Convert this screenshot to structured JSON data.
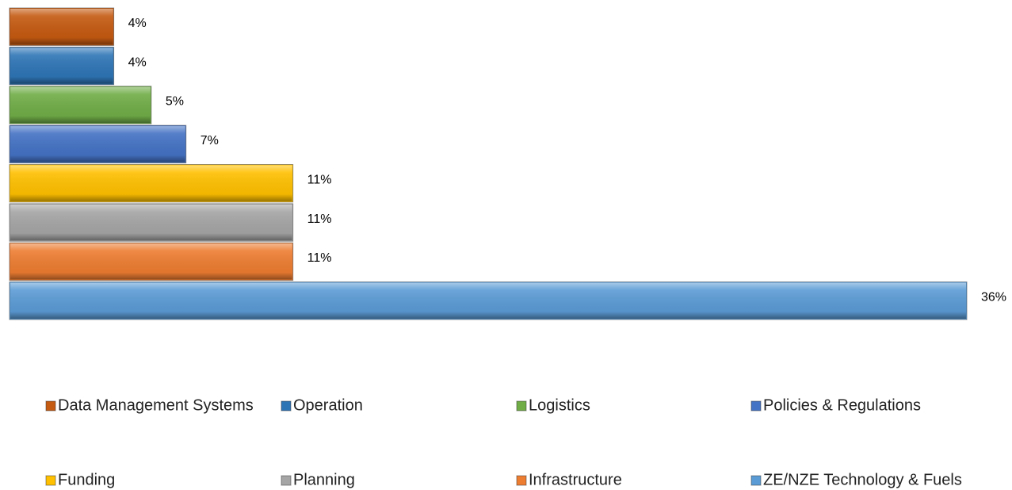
{
  "chart_data": {
    "type": "hbar",
    "categories": [
      "Data Management Systems",
      "Operation",
      "Logistics",
      "Policies & Regulations",
      "Funding",
      "Planning",
      "Infrastructure",
      "ZE/NZE Technology & Fuels"
    ],
    "values": [
      3.9,
      3.9,
      5.3,
      6.6,
      10.6,
      10.6,
      10.6,
      35.8
    ],
    "value_labels": [
      "4%",
      "4%",
      "5%",
      "7%",
      "11%",
      "11%",
      "11%",
      "36%"
    ],
    "colors": [
      "#c55a11",
      "#2e75b6",
      "#70ad47",
      "#4472c4",
      "#ffc000",
      "#a5a5a5",
      "#ed7d31",
      "#5b9bd5"
    ],
    "legend": "bottom"
  }
}
